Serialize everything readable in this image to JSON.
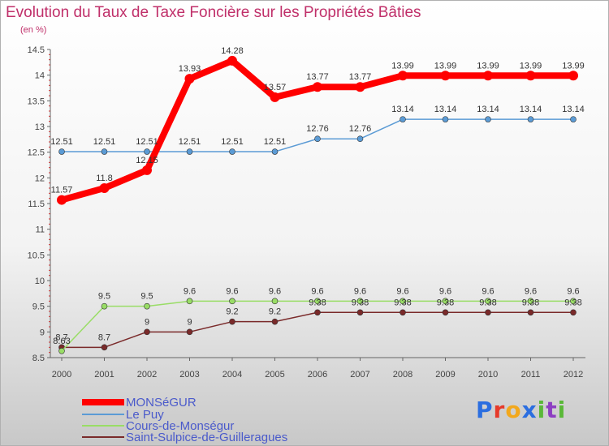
{
  "colors": {
    "title": "#c0306a",
    "axis": "#555555",
    "legend_text": "#4a5acb",
    "series": [
      "#ff0000",
      "#5b9bd5",
      "#99dd66",
      "#7a2a2a"
    ]
  },
  "brand": {
    "letters": [
      "P",
      "r",
      "o",
      "x",
      "i",
      "t",
      "i"
    ],
    "colors": [
      "#2b6ee0",
      "#e63a2a",
      "#f2a81d",
      "#2b6ee0",
      "#5ab838",
      "#8d3fc2",
      "#5ab838"
    ]
  },
  "chart_data": {
    "type": "line",
    "title": "Evolution du Taux de Taxe Foncière sur les Propriétés Bâties",
    "unit": "(en %)",
    "x": [
      "2000",
      "2001",
      "2002",
      "2003",
      "2004",
      "2005",
      "2006",
      "2007",
      "2008",
      "2009",
      "2010",
      "2011",
      "2012"
    ],
    "ylim": [
      8.5,
      14.5
    ],
    "yticks": [
      "8.5",
      "9",
      "9.5",
      "10",
      "10.5",
      "11",
      "11.5",
      "12",
      "12.5",
      "13",
      "13.5",
      "14",
      "14.5"
    ],
    "grid": false,
    "legend_position": "bottom-left",
    "series": [
      {
        "name": "MONSéGUR",
        "values": [
          11.57,
          11.8,
          12.15,
          13.93,
          14.28,
          13.57,
          13.77,
          13.77,
          13.99,
          13.99,
          13.99,
          13.99,
          13.99
        ],
        "labels": [
          "11.57",
          "11.8",
          "12.15",
          "13.93",
          "14.28",
          "13.57",
          "13.77",
          "13.77",
          "13.99",
          "13.99",
          "13.99",
          "13.99",
          "13.99"
        ]
      },
      {
        "name": "Le Puy",
        "values": [
          12.51,
          12.51,
          12.51,
          12.51,
          12.51,
          12.51,
          12.76,
          12.76,
          13.14,
          13.14,
          13.14,
          13.14,
          13.14
        ],
        "labels": [
          "12.51",
          "12.51",
          "12.51",
          "12.51",
          "12.51",
          "12.51",
          "12.76",
          "12.76",
          "13.14",
          "13.14",
          "13.14",
          "13.14",
          "13.14"
        ]
      },
      {
        "name": "Cours-de-Monségur",
        "values": [
          8.63,
          9.5,
          9.5,
          9.6,
          9.6,
          9.6,
          9.6,
          9.6,
          9.6,
          9.6,
          9.6,
          9.6,
          9.6
        ],
        "labels": [
          "8.63",
          "9.5",
          "9.5",
          "9.6",
          "9.6",
          "9.6",
          "9.6",
          "9.6",
          "9.6",
          "9.6",
          "9.6",
          "9.6",
          "9.6"
        ]
      },
      {
        "name": "Saint-Sulpice-de-Guilleragues",
        "values": [
          8.7,
          8.7,
          9,
          9,
          9.2,
          9.2,
          9.38,
          9.38,
          9.38,
          9.38,
          9.38,
          9.38,
          9.38
        ],
        "labels": [
          "8.7",
          "8.7",
          "9",
          "9",
          "9.2",
          "9.2",
          "9.38",
          "9.38",
          "9.38",
          "9.38",
          "9.38",
          "9.38",
          "9.38"
        ]
      }
    ]
  }
}
